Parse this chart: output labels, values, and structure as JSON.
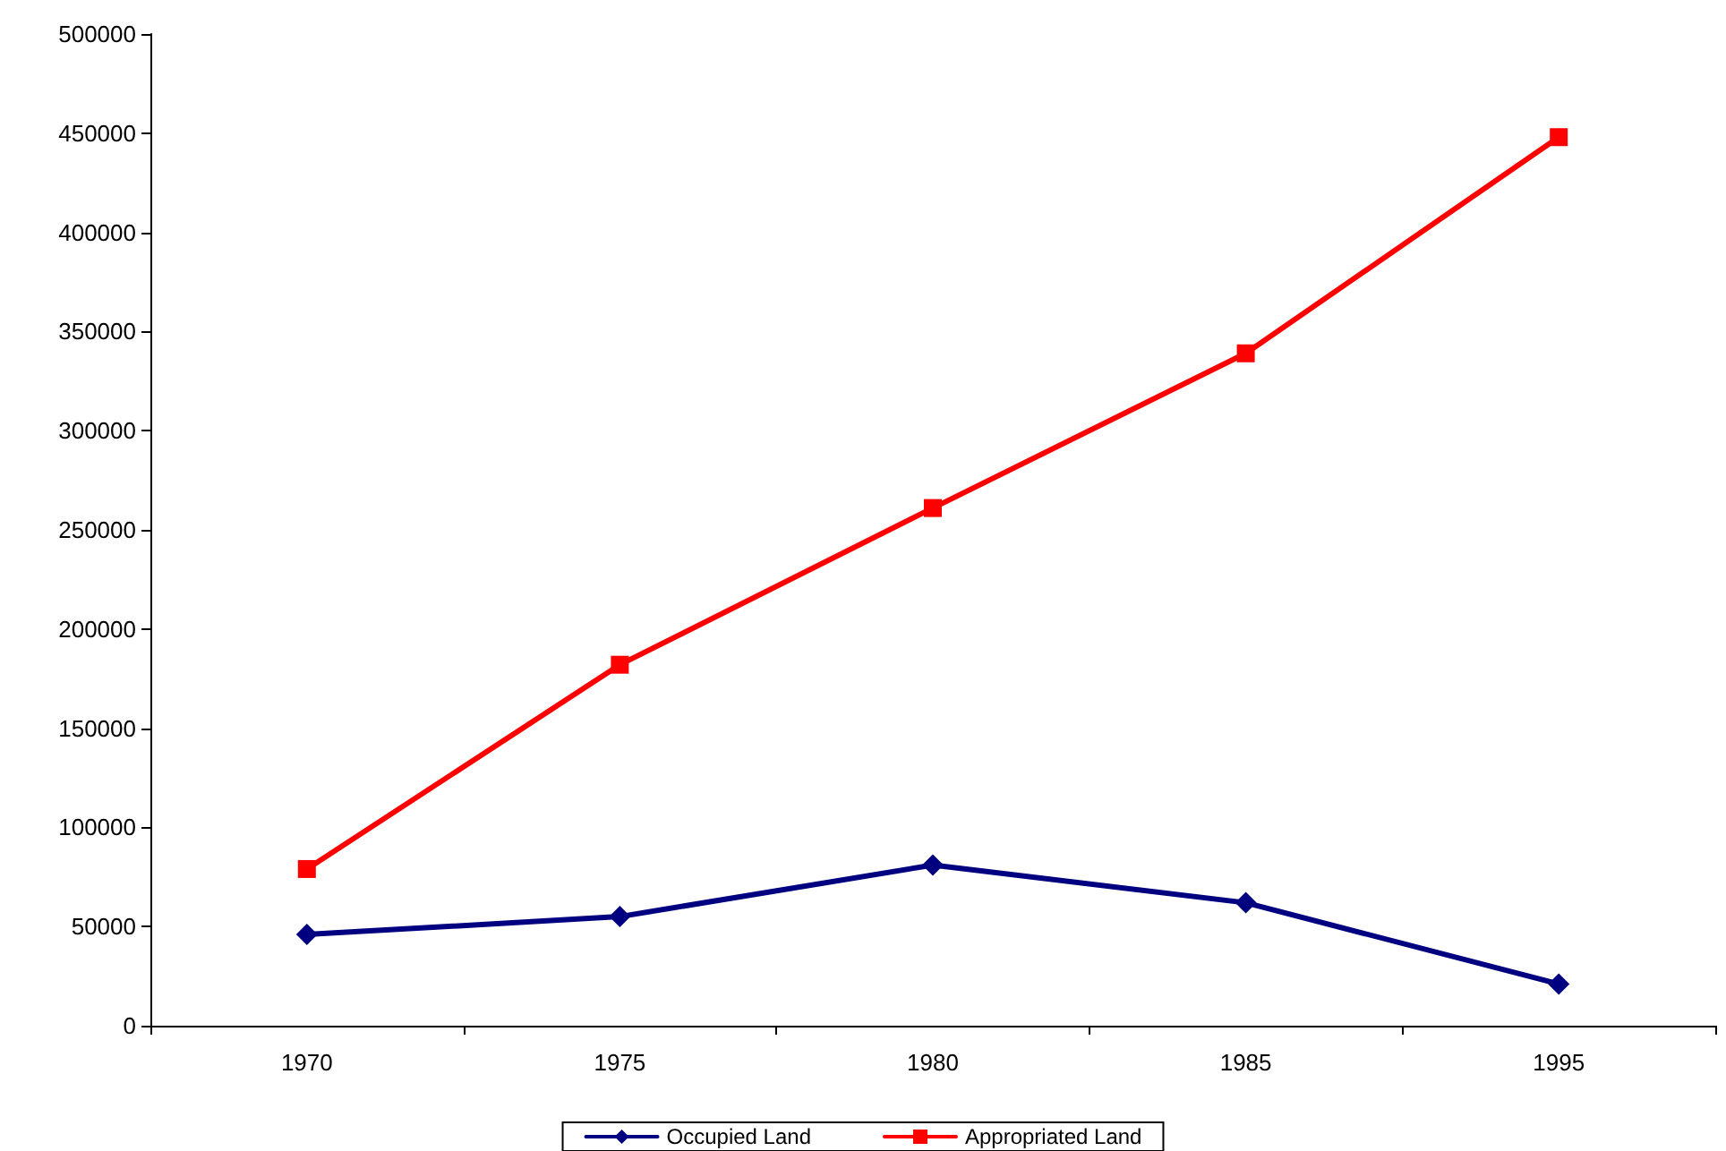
{
  "chart_data": {
    "type": "line",
    "categories": [
      "1970",
      "1975",
      "1980",
      "1985",
      "1995"
    ],
    "series": [
      {
        "name": "Occupied Land",
        "color": "#000080",
        "marker": "diamond",
        "values": [
          46000,
          55000,
          81000,
          62000,
          21000
        ]
      },
      {
        "name": "Appropriated Land",
        "color": "#ff0000",
        "marker": "square",
        "values": [
          79000,
          182000,
          261000,
          339000,
          448000
        ]
      }
    ],
    "ylim": [
      0,
      500000
    ],
    "yticks": [
      0,
      50000,
      100000,
      150000,
      200000,
      250000,
      300000,
      350000,
      400000,
      450000,
      500000
    ],
    "grid": false,
    "legend": "bottom",
    "line_style": "solid"
  }
}
